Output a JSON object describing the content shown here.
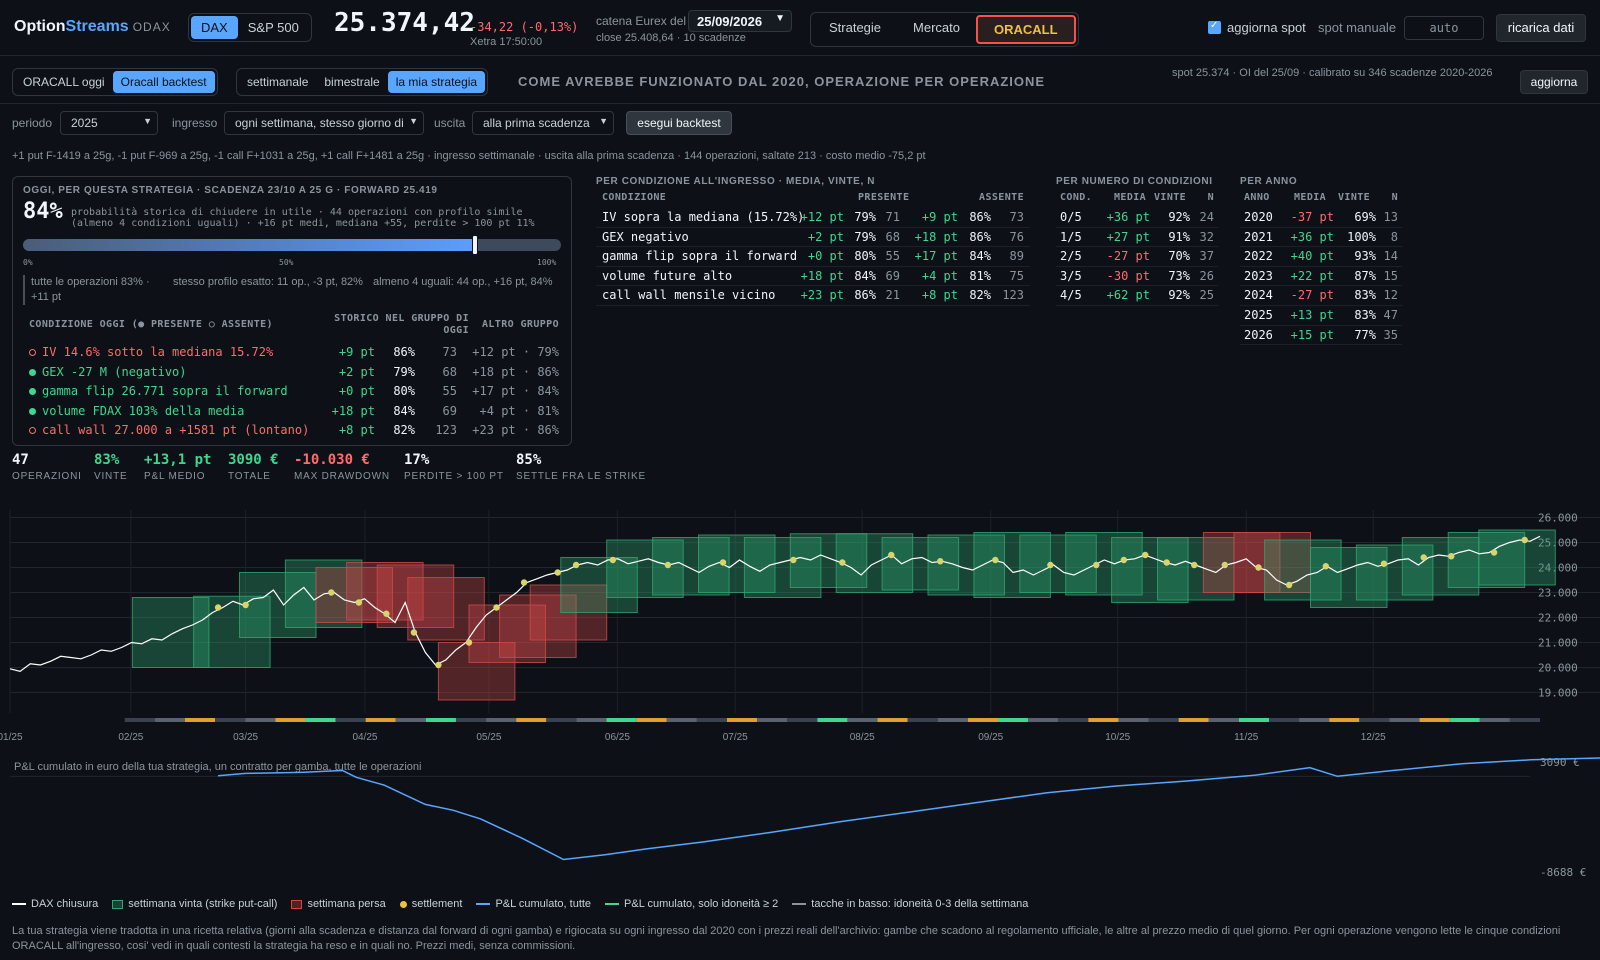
{
  "app": {
    "name_a": "Option",
    "name_b": "Streams",
    "sub": "ODAX"
  },
  "index_tabs": [
    "DAX",
    "S&P 500"
  ],
  "quote": {
    "price": "25.374,42",
    "change": "-34,22 (-0,13%)",
    "time": "Xetra 17:50:00"
  },
  "chain": {
    "label": "catena Eurex del",
    "date": "25/09/2026",
    "close": "close 25.408,64 · 10 scadenze"
  },
  "nav": {
    "items": [
      "Strategie",
      "Mercato",
      "ORACALL"
    ]
  },
  "controls_top": {
    "update_spot": "aggiorna spot",
    "manual_spot": "spot manuale",
    "manual_placeholder": "auto",
    "reload": "ricarica dati"
  },
  "subtabs": {
    "mode": [
      "ORACALL oggi",
      "Oracall backtest"
    ],
    "freq": [
      "settimanale",
      "bimestrale",
      "la mia strategia"
    ]
  },
  "headline": "COME AVREBBE FUNZIONATO DAL 2020, OPERAZIONE PER OPERAZIONE",
  "spot_info": "spot 25.374 · OI del 25/09 · calibrato su 346 scadenze 2020-2026",
  "refresh": "aggiorna",
  "form": {
    "period_label": "periodo",
    "period_value": "2025",
    "entry_label": "ingresso",
    "entry_value": "ogni settimana, stesso giorno di",
    "exit_label": "uscita",
    "exit_value": "alla prima scadenza",
    "run": "esegui backtest"
  },
  "recipe": "+1 put F-1419 a 25g, -1 put F-969 a 25g, -1 call F+1031 a 25g, +1 call F+1481 a 25g · ingresso settimanale · uscita alla prima scadenza · 144 operazioni, saltate 213 · costo medio -75,2 pt",
  "today": {
    "header": "OGGI, PER QUESTA STRATEGIA · SCADENZA 23/10 A 25 G · FORWARD 25.419",
    "pct": "84%",
    "prob_text": "probabilità storica di chiudere in utile · 44 operazioni con profilo simile (almeno 4 condizioni uguali) · +16 pt medi, mediana +55, perdite > 100 pt 11%",
    "prob_value": 0.84,
    "ticks": [
      "0%",
      "50%",
      "100%"
    ],
    "groups": [
      "tutte le operazioni 83% · +11 pt",
      "stesso profilo esatto: 11 op., -3 pt, 82%",
      "almeno 4 uguali: 44 op., +16 pt, 84%"
    ],
    "cond_head": {
      "c1": "CONDIZIONE OGGI (● PRESENTE ○ ASSENTE)",
      "c2": "STORICO NEL GRUPPO DI OGGI",
      "c3": "ALTRO GRUPPO"
    },
    "conds": [
      {
        "present": false,
        "label": "IV 14.6% sotto la mediana 15.72%",
        "pt": "+9 pt",
        "win": "86%",
        "n": "73",
        "other": "+12 pt · 79%"
      },
      {
        "present": true,
        "label": "GEX -27 M (negativo)",
        "pt": "+2 pt",
        "win": "79%",
        "n": "68",
        "other": "+18 pt · 86%"
      },
      {
        "present": true,
        "label": "gamma flip 26.771 sopra il forward",
        "pt": "+0 pt",
        "win": "80%",
        "n": "55",
        "other": "+17 pt · 84%"
      },
      {
        "present": true,
        "label": "volume FDAX 103% della media",
        "pt": "+18 pt",
        "win": "84%",
        "n": "69",
        "other": "+4 pt · 81%"
      },
      {
        "present": false,
        "label": "call wall 27.000 a +1581 pt (lontano)",
        "pt": "+8 pt",
        "win": "82%",
        "n": "123",
        "other": "+23 pt · 86%"
      }
    ]
  },
  "by_condition": {
    "header": "PER CONDIZIONE ALL'INGRESSO · MEDIA, VINTE, N",
    "cols": [
      "CONDIZIONE",
      "PRESENTE",
      "ASSENTE"
    ],
    "rows": [
      {
        "name": "IV sopra la mediana (15.72%)",
        "p_pt": "+12 pt",
        "p_w": "79%",
        "p_n": "71",
        "a_pt": "+9 pt",
        "a_w": "86%",
        "a_n": "73"
      },
      {
        "name": "GEX negativo",
        "p_pt": "+2 pt",
        "p_w": "79%",
        "p_n": "68",
        "a_pt": "+18 pt",
        "a_w": "86%",
        "a_n": "76"
      },
      {
        "name": "gamma flip sopra il forward",
        "p_pt": "+0 pt",
        "p_w": "80%",
        "p_n": "55",
        "a_pt": "+17 pt",
        "a_w": "84%",
        "a_n": "89"
      },
      {
        "name": "volume future alto",
        "p_pt": "+18 pt",
        "p_w": "84%",
        "p_n": "69",
        "a_pt": "+4 pt",
        "a_w": "81%",
        "a_n": "75"
      },
      {
        "name": "call wall mensile vicino",
        "p_pt": "+23 pt",
        "p_w": "86%",
        "p_n": "21",
        "a_pt": "+8 pt",
        "a_w": "82%",
        "a_n": "123"
      }
    ]
  },
  "by_count": {
    "header": "PER NUMERO DI CONDIZIONI",
    "cols": [
      "COND.",
      "MEDIA",
      "VINTE",
      "N"
    ],
    "rows": [
      {
        "c": "0/5",
        "m": "+36 pt",
        "w": "92%",
        "n": "24"
      },
      {
        "c": "1/5",
        "m": "+27 pt",
        "w": "91%",
        "n": "32"
      },
      {
        "c": "2/5",
        "m": "-27 pt",
        "w": "70%",
        "n": "37"
      },
      {
        "c": "3/5",
        "m": "-30 pt",
        "w": "73%",
        "n": "26"
      },
      {
        "c": "4/5",
        "m": "+62 pt",
        "w": "92%",
        "n": "25"
      }
    ]
  },
  "by_year": {
    "header": "PER ANNO",
    "cols": [
      "ANNO",
      "MEDIA",
      "VINTE",
      "N"
    ],
    "rows": [
      {
        "y": "2020",
        "m": "-37 pt",
        "w": "69%",
        "n": "13"
      },
      {
        "y": "2021",
        "m": "+36 pt",
        "w": "100%",
        "n": "8"
      },
      {
        "y": "2022",
        "m": "+40 pt",
        "w": "93%",
        "n": "14"
      },
      {
        "y": "2023",
        "m": "+22 pt",
        "w": "87%",
        "n": "15"
      },
      {
        "y": "2024",
        "m": "-27 pt",
        "w": "83%",
        "n": "12"
      },
      {
        "y": "2025",
        "m": "+13 pt",
        "w": "83%",
        "n": "47"
      },
      {
        "y": "2026",
        "m": "+15 pt",
        "w": "77%",
        "n": "35"
      }
    ]
  },
  "kpis": [
    {
      "v": "47",
      "l": "OPERAZIONI",
      "tone": "white"
    },
    {
      "v": "83%",
      "l": "VINTE",
      "tone": "green"
    },
    {
      "v": "+13,1 pt",
      "l": "P&L MEDIO",
      "tone": "green"
    },
    {
      "v": "3090 €",
      "l": "TOTALE",
      "tone": "green"
    },
    {
      "v": "-10.030 €",
      "l": "MAX DRAWDOWN",
      "tone": "red"
    },
    {
      "v": "17%",
      "l": "PERDITE > 100 PT",
      "tone": "white"
    },
    {
      "v": "85%",
      "l": "SETTLE FRA LE STRIKE",
      "tone": "white"
    }
  ],
  "chart_data": [
    {
      "type": "line",
      "ylim": [
        18500,
        26300
      ],
      "yticks": [
        "19.000",
        "20.000",
        "21.000",
        "22.000",
        "23.000",
        "24.000",
        "25.000",
        "26.000"
      ],
      "xticks": [
        "01/25",
        "02/25",
        "03/25",
        "04/25",
        "05/25",
        "06/25",
        "07/25",
        "08/25",
        "09/25",
        "10/25",
        "11/25",
        "12/25"
      ],
      "series": [
        {
          "values": [
            19950,
            19850,
            20150,
            20100,
            20250,
            20450,
            20400,
            20350,
            20500,
            20700,
            20650,
            20800,
            21000,
            20950,
            21150,
            21100,
            21350,
            21550,
            21700,
            21900,
            22200,
            22400,
            22650,
            22500,
            22750,
            22800,
            23100,
            22500,
            22900,
            23200,
            22700,
            22950,
            23000,
            22700,
            22600,
            22750,
            22400,
            22150,
            21800,
            22600,
            21400,
            20600,
            20100,
            20300,
            20700,
            21000,
            21600,
            22100,
            22400,
            22700,
            23000,
            23400,
            23550,
            23700,
            23800,
            23900,
            24100,
            24200,
            24100,
            24300,
            24350,
            24150,
            24250,
            24350,
            24200,
            24100,
            24200,
            24000,
            23800,
            24050,
            24200,
            24000,
            24300,
            24050,
            23850,
            24100,
            24200,
            24300,
            24400,
            24300,
            24500,
            24350,
            24200,
            24000,
            23700,
            24100,
            24300,
            24500,
            24150,
            24350,
            24400,
            24200,
            24250,
            24150,
            24000,
            23900,
            24100,
            24300,
            24200,
            23800,
            23900,
            23700,
            23900,
            24100,
            23800,
            23700,
            23900,
            24100,
            24300,
            24150,
            24300,
            24350,
            24500,
            24350,
            24200,
            24100,
            24250,
            24100,
            23950,
            23800,
            24100,
            24200,
            24350,
            24000,
            23900,
            23500,
            23300,
            23450,
            23700,
            23800,
            24050,
            23800,
            23950,
            24100,
            24200,
            24050,
            24150,
            24300,
            24350,
            24100,
            24400,
            24500,
            24450,
            24600,
            24700,
            24550,
            24600,
            24850,
            25000,
            25100,
            25050,
            25250
          ]
        }
      ],
      "trades": [
        {
          "date": 0.08,
          "d": 0.05,
          "lo": 20000,
          "hi": 22800,
          "win": true
        },
        {
          "date": 0.12,
          "d": 0.05,
          "lo": 20000,
          "hi": 22850,
          "win": true
        },
        {
          "date": 0.15,
          "d": 0.05,
          "lo": 21200,
          "hi": 23800,
          "win": true
        },
        {
          "date": 0.18,
          "d": 0.05,
          "lo": 21600,
          "hi": 24300,
          "win": true
        },
        {
          "date": 0.2,
          "d": 0.05,
          "lo": 21800,
          "hi": 24000,
          "win": false
        },
        {
          "date": 0.22,
          "d": 0.05,
          "lo": 21900,
          "hi": 24200,
          "win": false
        },
        {
          "date": 0.24,
          "d": 0.05,
          "lo": 21600,
          "hi": 24100,
          "win": false
        },
        {
          "date": 0.26,
          "d": 0.05,
          "lo": 21100,
          "hi": 23600,
          "win": false
        },
        {
          "date": 0.28,
          "d": 0.05,
          "lo": 18700,
          "hi": 21000,
          "win": false
        },
        {
          "date": 0.3,
          "d": 0.05,
          "lo": 20200,
          "hi": 22500,
          "win": false
        },
        {
          "date": 0.32,
          "d": 0.05,
          "lo": 20400,
          "hi": 22900,
          "win": false
        },
        {
          "date": 0.34,
          "d": 0.05,
          "lo": 21100,
          "hi": 23300,
          "win": false
        },
        {
          "date": 0.36,
          "d": 0.05,
          "lo": 22200,
          "hi": 24400,
          "win": true
        },
        {
          "date": 0.39,
          "d": 0.05,
          "lo": 22800,
          "hi": 25100,
          "win": true
        },
        {
          "date": 0.42,
          "d": 0.05,
          "lo": 22900,
          "hi": 25200,
          "win": true
        },
        {
          "date": 0.45,
          "d": 0.05,
          "lo": 23000,
          "hi": 25300,
          "win": true
        },
        {
          "date": 0.48,
          "d": 0.05,
          "lo": 22800,
          "hi": 25200,
          "win": true
        },
        {
          "date": 0.51,
          "d": 0.05,
          "lo": 23200,
          "hi": 25350,
          "win": true
        },
        {
          "date": 0.54,
          "d": 0.05,
          "lo": 23000,
          "hi": 25350,
          "win": true
        },
        {
          "date": 0.57,
          "d": 0.05,
          "lo": 23100,
          "hi": 25200,
          "win": true
        },
        {
          "date": 0.6,
          "d": 0.05,
          "lo": 22900,
          "hi": 25300,
          "win": true
        },
        {
          "date": 0.63,
          "d": 0.05,
          "lo": 22800,
          "hi": 25400,
          "win": true
        },
        {
          "date": 0.66,
          "d": 0.05,
          "lo": 23000,
          "hi": 25300,
          "win": true
        },
        {
          "date": 0.69,
          "d": 0.05,
          "lo": 22900,
          "hi": 25400,
          "win": true
        },
        {
          "date": 0.72,
          "d": 0.05,
          "lo": 22600,
          "hi": 25200,
          "win": true
        },
        {
          "date": 0.75,
          "d": 0.05,
          "lo": 22700,
          "hi": 25200,
          "win": true
        },
        {
          "date": 0.78,
          "d": 0.05,
          "lo": 23000,
          "hi": 25400,
          "win": false
        },
        {
          "date": 0.8,
          "d": 0.05,
          "lo": 23000,
          "hi": 25400,
          "win": false
        },
        {
          "date": 0.82,
          "d": 0.05,
          "lo": 22700,
          "hi": 25100,
          "win": true
        },
        {
          "date": 0.85,
          "d": 0.05,
          "lo": 22400,
          "hi": 24800,
          "win": true
        },
        {
          "date": 0.88,
          "d": 0.05,
          "lo": 22700,
          "hi": 24900,
          "win": true
        },
        {
          "date": 0.91,
          "d": 0.05,
          "lo": 22900,
          "hi": 25200,
          "win": true
        },
        {
          "date": 0.94,
          "d": 0.05,
          "lo": 23200,
          "hi": 25400,
          "win": true
        },
        {
          "date": 0.96,
          "d": 0.05,
          "lo": 23300,
          "hi": 25500,
          "win": true
        }
      ],
      "settlements": [
        0.136,
        0.154,
        0.21,
        0.228,
        0.246,
        0.264,
        0.28,
        0.3,
        0.318,
        0.336,
        0.358,
        0.37,
        0.394,
        0.43,
        0.466,
        0.512,
        0.544,
        0.576,
        0.608,
        0.644,
        0.68,
        0.71,
        0.728,
        0.742,
        0.756,
        0.774,
        0.794,
        0.816,
        0.836,
        0.86,
        0.898,
        0.924,
        0.942,
        0.97,
        0.99
      ],
      "suitability": [
        0,
        1,
        2,
        0,
        1,
        2,
        3,
        0,
        2,
        1,
        3,
        0,
        1,
        2,
        0,
        1,
        3,
        2,
        1,
        0,
        2,
        1,
        0,
        3,
        1,
        2,
        0,
        1,
        2,
        3,
        1,
        0,
        2,
        1,
        0,
        2,
        1,
        3,
        0,
        1,
        2,
        0,
        1,
        2,
        3,
        1,
        0
      ]
    },
    {
      "type": "line",
      "ylim": [
        -8688,
        3090
      ],
      "annotations": [
        "P&L cumulato in euro della tua strategia, un contratto per gamba, tutte le operazioni"
      ],
      "yticks": [
        "3090 €",
        "-8688 €"
      ],
      "series": [
        {
          "x": [
            0.0,
            0.02,
            0.06,
            0.09,
            0.1,
            0.12,
            0.15,
            0.17,
            0.19,
            0.22,
            0.25,
            0.28,
            0.31,
            0.35,
            0.4,
            0.45,
            0.5,
            0.55,
            0.6,
            0.65,
            0.7,
            0.75,
            0.79,
            0.81,
            0.85,
            0.9,
            0.95,
            1.0
          ],
          "values": [
            1250,
            1500,
            1600,
            1800,
            1100,
            300,
            -1700,
            -2300,
            -3200,
            -5200,
            -7400,
            -6900,
            -6300,
            -5600,
            -4600,
            -3500,
            -2500,
            -1500,
            -500,
            200,
            700,
            1300,
            2100,
            1200,
            1800,
            2500,
            2900,
            3090
          ]
        }
      ]
    }
  ],
  "legend": [
    {
      "kind": "line",
      "color": "#ffffff",
      "label": "DAX chiusura"
    },
    {
      "kind": "box",
      "color": "#2ea66f",
      "label": "settimana vinta (strike put-call)"
    },
    {
      "kind": "box",
      "color": "#d04848",
      "label": "settimana persa"
    },
    {
      "kind": "dot",
      "color": "#f0c040",
      "label": "settlement"
    },
    {
      "kind": "line",
      "color": "#58a6ff",
      "label": "P&L cumulato, tutte"
    },
    {
      "kind": "line",
      "color": "#3fd68f",
      "label": "P&L cumulato, solo idoneità ≥ 2"
    },
    {
      "kind": "line",
      "color": "#8b949e",
      "label": "tacche in basso: idoneità 0-3 della settimana"
    }
  ],
  "footer": "La tua strategia viene tradotta in una ricetta relativa (giorni alla scadenza e distanza dal forward di ogni gamba) e rigiocata su ogni ingresso dal 2020 con i prezzi reali dell'archivio: gambe che scadono al regolamento ufficiale, le altre al prezzo medio di quel giorno. Per ogni operazione vengono lette le cinque condizioni ORACALL all'ingresso, cosi' vedi in quali contesti la strategia ha reso e in quali no. Prezzi medi, senza commissioni."
}
